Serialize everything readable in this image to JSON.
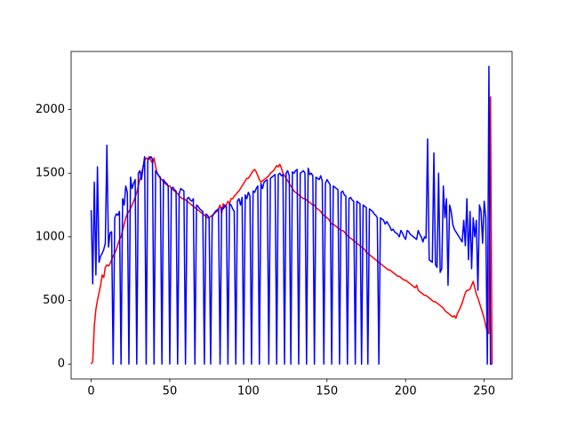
{
  "chart_data": {
    "type": "line",
    "x": [
      0,
      1,
      2,
      3,
      4,
      5,
      6,
      7,
      8,
      9,
      10,
      11,
      12,
      13,
      14,
      15,
      16,
      17,
      18,
      19,
      20,
      21,
      22,
      23,
      24,
      25,
      26,
      27,
      28,
      29,
      30,
      31,
      32,
      33,
      34,
      35,
      36,
      37,
      38,
      39,
      40,
      41,
      42,
      43,
      44,
      45,
      46,
      47,
      48,
      49,
      50,
      51,
      52,
      53,
      54,
      55,
      56,
      57,
      58,
      59,
      60,
      61,
      62,
      63,
      64,
      65,
      66,
      67,
      68,
      69,
      70,
      71,
      72,
      73,
      74,
      75,
      76,
      77,
      78,
      79,
      80,
      81,
      82,
      83,
      84,
      85,
      86,
      87,
      88,
      89,
      90,
      91,
      92,
      93,
      94,
      95,
      96,
      97,
      98,
      99,
      100,
      101,
      102,
      103,
      104,
      105,
      106,
      107,
      108,
      109,
      110,
      111,
      112,
      113,
      114,
      115,
      116,
      117,
      118,
      119,
      120,
      121,
      122,
      123,
      124,
      125,
      126,
      127,
      128,
      129,
      130,
      131,
      132,
      133,
      134,
      135,
      136,
      137,
      138,
      139,
      140,
      141,
      142,
      143,
      144,
      145,
      146,
      147,
      148,
      149,
      150,
      151,
      152,
      153,
      154,
      155,
      156,
      157,
      158,
      159,
      160,
      161,
      162,
      163,
      164,
      165,
      166,
      167,
      168,
      169,
      170,
      171,
      172,
      173,
      174,
      175,
      176,
      177,
      178,
      179,
      180,
      181,
      182,
      183,
      184,
      185,
      186,
      187,
      188,
      189,
      190,
      191,
      192,
      193,
      194,
      195,
      196,
      197,
      198,
      199,
      200,
      201,
      202,
      203,
      204,
      205,
      206,
      207,
      208,
      209,
      210,
      211,
      212,
      213,
      214,
      215,
      216,
      217,
      218,
      219,
      220,
      221,
      222,
      223,
      224,
      225,
      226,
      227,
      228,
      229,
      230,
      231,
      232,
      233,
      234,
      235,
      236,
      237,
      238,
      239,
      240,
      241,
      242,
      243,
      244,
      245,
      246,
      247,
      248,
      249,
      250,
      251,
      252,
      253,
      254,
      255
    ],
    "series": [
      {
        "color": "#ff0000",
        "values": [
          0,
          20,
          300,
          430,
          500,
          560,
          620,
          700,
          680,
          760,
          780,
          770,
          790,
          820,
          850,
          870,
          900,
          940,
          980,
          1000,
          1050,
          1100,
          1150,
          1180,
          1200,
          1220,
          1250,
          1280,
          1310,
          1350,
          1400,
          1450,
          1500,
          1550,
          1600,
          1620,
          1610,
          1630,
          1600,
          1580,
          1620,
          1550,
          1500,
          1480,
          1460,
          1450,
          1430,
          1420,
          1410,
          1400,
          1400,
          1380,
          1370,
          1360,
          1350,
          1340,
          1320,
          1310,
          1300,
          1300,
          1290,
          1280,
          1270,
          1260,
          1250,
          1240,
          1230,
          1220,
          1210,
          1200,
          1190,
          1180,
          1170,
          1160,
          1150,
          1150,
          1160,
          1170,
          1180,
          1190,
          1200,
          1220,
          1250,
          1180,
          1260,
          1230,
          1250,
          1280,
          1260,
          1300,
          1300,
          1320,
          1330,
          1350,
          1360,
          1380,
          1400,
          1420,
          1440,
          1460,
          1460,
          1480,
          1500,
          1520,
          1530,
          1510,
          1480,
          1450,
          1430,
          1440,
          1450,
          1460,
          1470,
          1480,
          1500,
          1510,
          1520,
          1540,
          1560,
          1550,
          1570,
          1540,
          1500,
          1480,
          1460,
          1440,
          1420,
          1400,
          1380,
          1360,
          1350,
          1340,
          1330,
          1320,
          1310,
          1300,
          1300,
          1290,
          1280,
          1270,
          1260,
          1250,
          1250,
          1230,
          1220,
          1210,
          1200,
          1180,
          1170,
          1160,
          1150,
          1140,
          1120,
          1100,
          1100,
          1090,
          1080,
          1070,
          1060,
          1050,
          1050,
          1040,
          1020,
          1010,
          1000,
          990,
          980,
          970,
          960,
          950,
          940,
          930,
          920,
          910,
          900,
          880,
          870,
          860,
          850,
          840,
          830,
          820,
          810,
          800,
          790,
          780,
          770,
          760,
          750,
          740,
          740,
          730,
          720,
          710,
          700,
          690,
          690,
          680,
          670,
          660,
          660,
          650,
          640,
          630,
          620,
          610,
          600,
          620,
          580,
          570,
          560,
          550,
          540,
          540,
          530,
          520,
          510,
          500,
          490,
          490,
          480,
          470,
          460,
          450,
          440,
          420,
          410,
          400,
          390,
          380,
          370,
          380,
          360,
          400,
          420,
          450,
          480,
          520,
          560,
          580,
          580,
          590,
          620,
          650,
          600,
          550,
          520,
          480,
          440,
          400,
          360,
          300,
          250,
          240,
          2100,
          0
        ]
      },
      {
        "color": "#0000ff",
        "values": [
          1210,
          630,
          1430,
          700,
          1550,
          800,
          850,
          870,
          900,
          950,
          1720,
          920,
          1030,
          1040,
          0,
          1150,
          1180,
          1170,
          1200,
          0,
          1300,
          1250,
          1400,
          1350,
          0,
          1470,
          1380,
          1420,
          1450,
          0,
          1500,
          1520,
          1450,
          1540,
          1630,
          0,
          1600,
          1620,
          1630,
          1610,
          0,
          1520,
          1500,
          1480,
          1470,
          0,
          1450,
          1430,
          1420,
          1400,
          0,
          1380,
          1390,
          1370,
          1360,
          0,
          1340,
          1380,
          1370,
          1360,
          0,
          1300,
          1310,
          1290,
          1280,
          1300,
          0,
          1250,
          1240,
          1220,
          1210,
          1200,
          0,
          1180,
          1170,
          1150,
          0,
          1160,
          1180,
          1200,
          1210,
          1220,
          0,
          1230,
          1220,
          1250,
          1240,
          0,
          1260,
          1250,
          1220,
          1200,
          0,
          1280,
          1300,
          1250,
          1310,
          0,
          1330,
          1300,
          1350,
          1320,
          0,
          1360,
          1350,
          1380,
          1400,
          0,
          1420,
          1380,
          1430,
          1440,
          1450,
          0,
          1460,
          1470,
          1480,
          1490,
          0,
          1490,
          1500,
          1480,
          1490,
          0,
          1500,
          1520,
          1480,
          0,
          1510,
          1500,
          1520,
          1530,
          0,
          1500,
          1510,
          1520,
          1500,
          0,
          1540,
          1490,
          1500,
          1480,
          0,
          1470,
          1460,
          1450,
          1480,
          1440,
          0,
          1420,
          1450,
          1430,
          1410,
          0,
          1400,
          1390,
          1380,
          1370,
          0,
          1350,
          1360,
          1330,
          1320,
          0,
          1300,
          1310,
          1290,
          1280,
          0,
          1280,
          1270,
          1260,
          0,
          1250,
          1240,
          1230,
          0,
          1220,
          1210,
          1200,
          1180,
          1170,
          1150,
          0,
          1150,
          1140,
          1130,
          1100,
          1120,
          1100,
          1080,
          1050,
          1060,
          1040,
          1030,
          1020,
          1000,
          1050,
          1030,
          1000,
          980,
          1050,
          1040,
          1020,
          1010,
          1000,
          990,
          980,
          1050,
          1020,
          1000,
          960,
          1000,
          990,
          1770,
          820,
          810,
          800,
          1660,
          780,
          760,
          1500,
          720,
          750,
          1400,
          1150,
          1300,
          620,
          1250,
          1200,
          1100,
          1060,
          1040,
          1020,
          1000,
          980,
          960,
          1130,
          930,
          1300,
          820,
          1200,
          750,
          1150,
          1000,
          1130,
          580,
          1250,
          1200,
          950,
          1280,
          1150,
          0,
          2340,
          0,
          0
        ]
      }
    ],
    "xlim": [
      -12.75,
      267.75
    ],
    "xticks": [
      0,
      50,
      100,
      150,
      200,
      250
    ],
    "ylim": [
      -117,
      2457
    ],
    "yticks": [
      0,
      500,
      1000,
      1500,
      2000
    ],
    "grid": false
  }
}
